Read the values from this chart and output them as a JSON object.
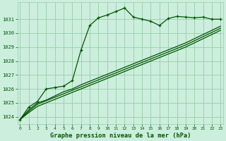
{
  "title": "Graphe pression niveau de la mer (hPa)",
  "background_color": "#cceedd",
  "grid_color": "#99ccaa",
  "line_color": "#005500",
  "ylim": [
    1023.5,
    1032.2
  ],
  "yticks": [
    1024,
    1025,
    1026,
    1027,
    1028,
    1029,
    1030,
    1031
  ],
  "xlim": [
    -0.3,
    23.3
  ],
  "xticks": [
    0,
    1,
    2,
    3,
    4,
    5,
    6,
    7,
    8,
    9,
    10,
    11,
    12,
    13,
    14,
    15,
    16,
    17,
    18,
    19,
    20,
    21,
    22,
    23
  ],
  "series": [
    {
      "y": [
        1023.8,
        1024.7,
        1025.1,
        1026.0,
        1026.1,
        1026.2,
        1026.6,
        1028.8,
        1030.55,
        1031.1,
        1031.3,
        1031.55,
        1031.8,
        1031.15,
        1031.0,
        1030.85,
        1030.55,
        1031.05,
        1031.2,
        1031.15,
        1031.1,
        1031.15,
        1031.0,
        1031.0
      ],
      "marker": true,
      "linewidth": 0.9
    },
    {
      "y": [
        1023.8,
        1024.5,
        1025.0,
        1025.2,
        1025.5,
        1025.8,
        1026.0,
        1026.3,
        1026.55,
        1026.8,
        1027.05,
        1027.3,
        1027.55,
        1027.8,
        1028.05,
        1028.3,
        1028.55,
        1028.8,
        1029.05,
        1029.3,
        1029.6,
        1029.9,
        1030.2,
        1030.5
      ],
      "marker": false,
      "linewidth": 0.9
    },
    {
      "y": [
        1023.8,
        1024.4,
        1024.9,
        1025.15,
        1025.4,
        1025.65,
        1025.9,
        1026.15,
        1026.4,
        1026.65,
        1026.9,
        1027.15,
        1027.4,
        1027.65,
        1027.9,
        1028.15,
        1028.4,
        1028.65,
        1028.9,
        1029.15,
        1029.45,
        1029.75,
        1030.05,
        1030.35
      ],
      "marker": false,
      "linewidth": 0.9
    },
    {
      "y": [
        1023.8,
        1024.3,
        1024.75,
        1025.0,
        1025.25,
        1025.5,
        1025.75,
        1026.0,
        1026.25,
        1026.5,
        1026.75,
        1027.0,
        1027.25,
        1027.5,
        1027.75,
        1028.0,
        1028.25,
        1028.5,
        1028.75,
        1029.0,
        1029.3,
        1029.6,
        1029.9,
        1030.2
      ],
      "marker": false,
      "linewidth": 0.9
    }
  ]
}
